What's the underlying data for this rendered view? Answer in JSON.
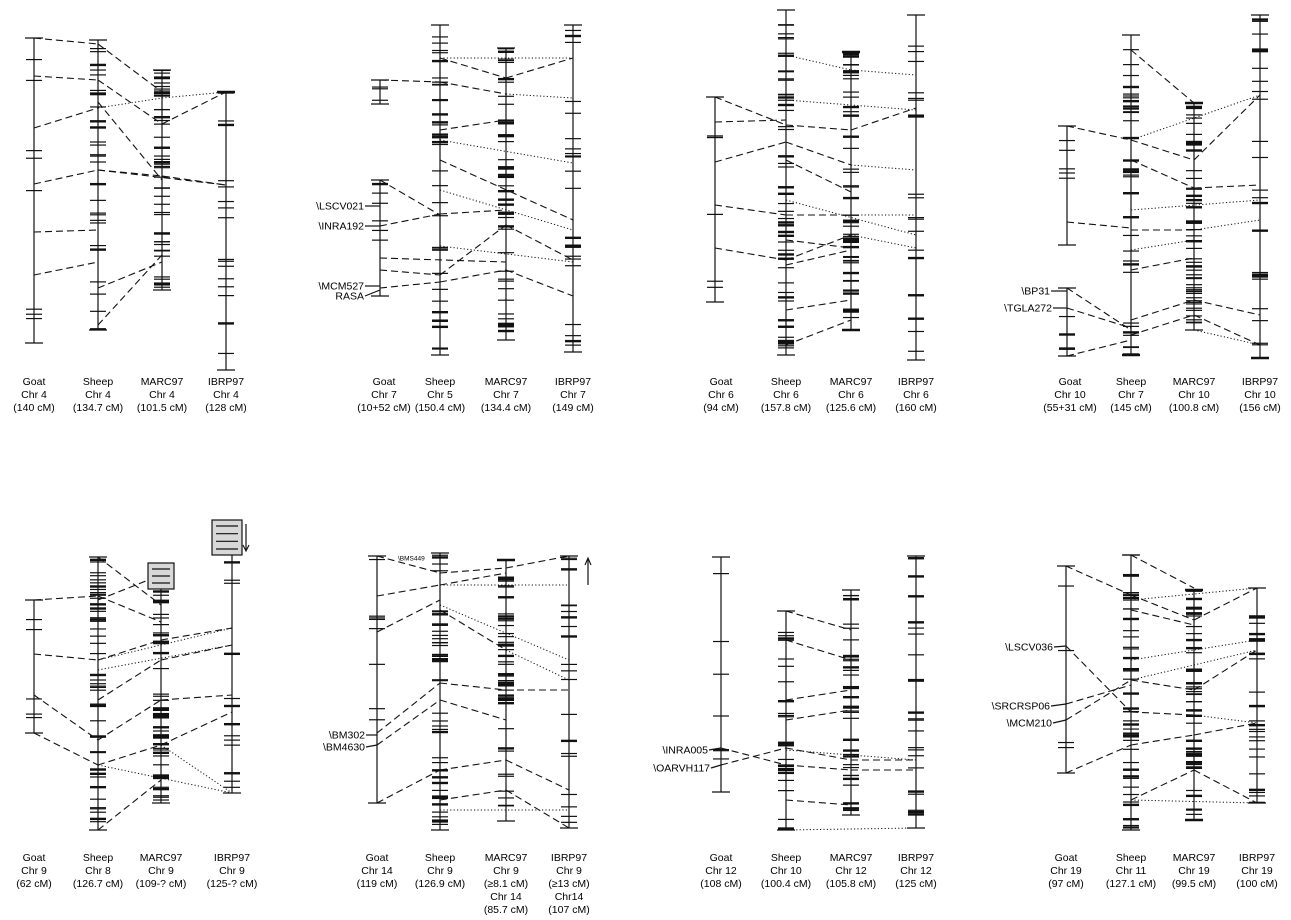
{
  "panels": [
    {
      "id": "chr4",
      "captions": [
        [
          "Goat",
          "Chr 4",
          "(140 cM)"
        ],
        [
          "Sheep",
          "Chr 4",
          "(134.7 cM)"
        ],
        [
          "MARC97",
          "Chr 4",
          "(101.5 cM)"
        ],
        [
          "IBRP97",
          "Chr 4",
          "(128 cM)"
        ]
      ],
      "markers": []
    },
    {
      "id": "chr7",
      "captions": [
        [
          "Goat",
          "Chr 7",
          "(10+52 cM)"
        ],
        [
          "Sheep",
          "Chr 5",
          "(150.4 cM)"
        ],
        [
          "MARC97",
          "Chr 7",
          "(134.4 cM)"
        ],
        [
          "IBRP97",
          "Chr 7",
          "(149 cM)"
        ]
      ],
      "markers": [
        "\\LSCV021",
        "\\INRA192",
        "\\MCM527",
        "RASA"
      ]
    },
    {
      "id": "chr6",
      "captions": [
        [
          "Goat",
          "Chr 6",
          "(94 cM)"
        ],
        [
          "Sheep",
          "Chr 6",
          "(157.8 cM)"
        ],
        [
          "MARC97",
          "Chr 6",
          "(125.6 cM)"
        ],
        [
          "IBRP97",
          "Chr 6",
          "(160 cM)"
        ]
      ],
      "markers": []
    },
    {
      "id": "chr10",
      "captions": [
        [
          "Goat",
          "Chr 10",
          "(55+31 cM)"
        ],
        [
          "Sheep",
          "Chr 7",
          "(145 cM)"
        ],
        [
          "MARC97",
          "Chr 10",
          "(100.8 cM)"
        ],
        [
          "IBRP97",
          "Chr 10",
          "(156 cM)"
        ]
      ],
      "markers": [
        "\\BP31",
        "\\TGLA272"
      ]
    },
    {
      "id": "chr9",
      "captions": [
        [
          "Goat",
          "Chr 9",
          "(62 cM)"
        ],
        [
          "Sheep",
          "Chr 8",
          "(126.7 cM)"
        ],
        [
          "MARC97",
          "Chr 9",
          "(109-? cM)"
        ],
        [
          "IBRP97",
          "Chr 9",
          "(125-? cM)"
        ]
      ],
      "markers": []
    },
    {
      "id": "chr14",
      "captions": [
        [
          "Goat",
          "Chr 14",
          "(119 cM)"
        ],
        [
          "Sheep",
          "Chr 9",
          "(126.9 cM)"
        ],
        [
          "MARC97",
          "Chr 9",
          "(≥8.1 cM)",
          "Chr 14",
          "(85.7 cM)"
        ],
        [
          "IBRP97",
          "Chr 9",
          "(≥13 cM)",
          "Chr14",
          "(107 cM)"
        ]
      ],
      "markers": [
        "\\BM302",
        "\\BM4630",
        "\\BMS449"
      ]
    },
    {
      "id": "chr12",
      "captions": [
        [
          "Goat",
          "Chr 12",
          "(108 cM)"
        ],
        [
          "Sheep",
          "Chr 10",
          "(100.4 cM)"
        ],
        [
          "MARC97",
          "Chr 12",
          "(105.8 cM)"
        ],
        [
          "IBRP97",
          "Chr 12",
          "(125 cM)"
        ]
      ],
      "markers": [
        "\\INRA005",
        "\\OARVH117"
      ]
    },
    {
      "id": "chr19",
      "captions": [
        [
          "Goat",
          "Chr 19",
          "(97 cM)"
        ],
        [
          "Sheep",
          "Chr 11",
          "(127.1 cM)"
        ],
        [
          "MARC97",
          "Chr 19",
          "(99.5 cM)"
        ],
        [
          "IBRP97",
          "Chr 19",
          "(100 cM)"
        ]
      ],
      "markers": [
        "\\LSCV036",
        "\\SRCRSP06",
        "\\MCM210"
      ]
    }
  ]
}
